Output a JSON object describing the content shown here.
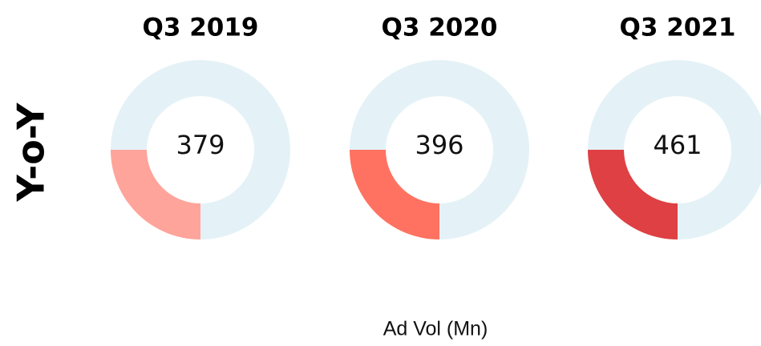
{
  "side_label": "Y-o-Y",
  "caption": "Ad Vol (Mn)",
  "chart_data": [
    {
      "type": "pie",
      "donut": true,
      "title": "Q3 2019",
      "center_value": 379,
      "values": [
        25,
        75
      ],
      "colors": [
        "#ffa49a",
        "#e4f2f7"
      ]
    },
    {
      "type": "pie",
      "donut": true,
      "title": "Q3 2020",
      "center_value": 396,
      "values": [
        25,
        75
      ],
      "colors": [
        "#ff7261",
        "#e4f2f7"
      ]
    },
    {
      "type": "pie",
      "donut": true,
      "title": "Q3 2021",
      "center_value": 461,
      "values": [
        25,
        75
      ],
      "colors": [
        "#de4043",
        "#e4f2f7"
      ]
    }
  ]
}
